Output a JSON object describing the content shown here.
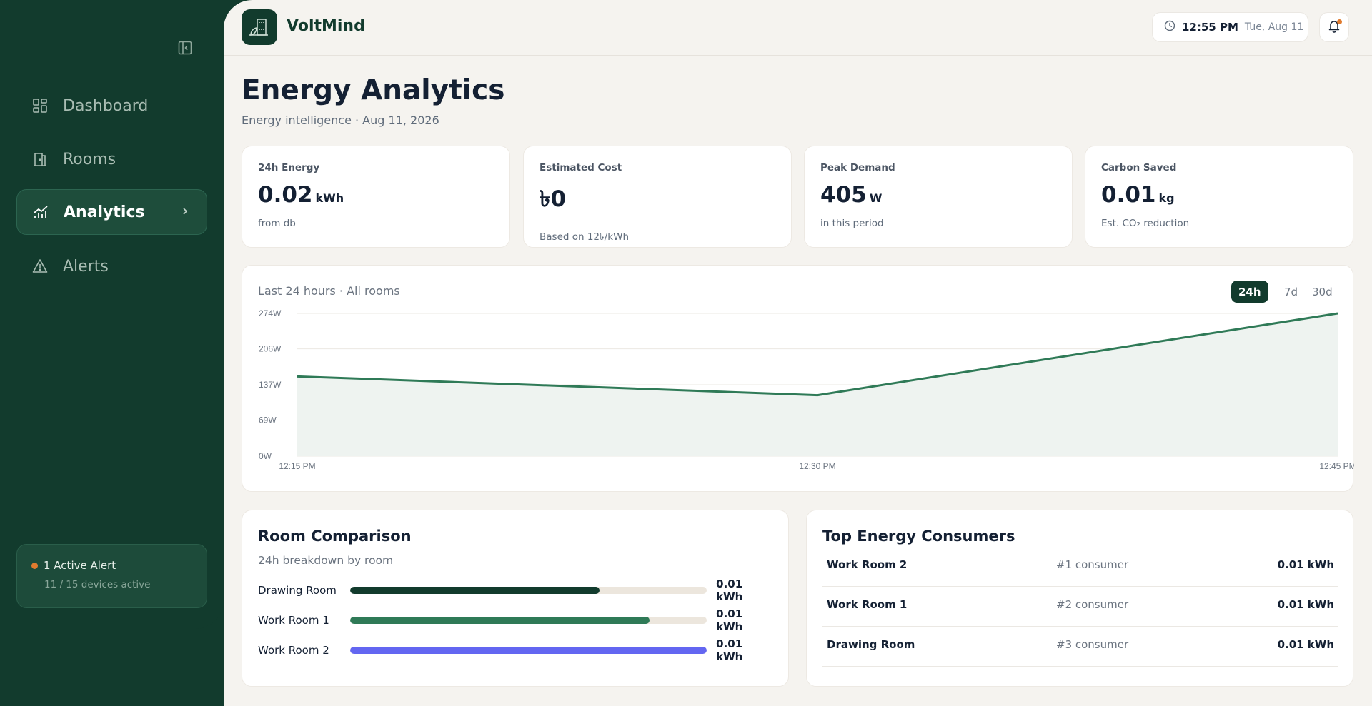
{
  "brand": {
    "name": "VoltMind"
  },
  "header": {
    "time": "12:55 PM",
    "date": "Tue, Aug 11"
  },
  "sidebar": {
    "items": [
      {
        "label": "Dashboard",
        "icon": "grid-icon"
      },
      {
        "label": "Rooms",
        "icon": "door-icon"
      },
      {
        "label": "Analytics",
        "icon": "chart-icon",
        "active": true
      },
      {
        "label": "Alerts",
        "icon": "warning-icon"
      }
    ],
    "alert": {
      "title": "1 Active Alert",
      "sub": "11 / 15 devices active"
    }
  },
  "page": {
    "title": "Energy Analytics",
    "subtitle": "Energy intelligence · Aug 11, 2026"
  },
  "stats": [
    {
      "label": "24h Energy",
      "value": "0.02",
      "unit": "kWh",
      "note": "from db"
    },
    {
      "label": "Estimated Cost",
      "value": "৳0",
      "unit": "",
      "note": "Based on 12৳/kWh"
    },
    {
      "label": "Peak Demand",
      "value": "405",
      "unit": "W",
      "note": "in this period"
    },
    {
      "label": "Carbon Saved",
      "value": "0.01",
      "unit": "kg",
      "note": "Est. CO₂ reduction"
    }
  ],
  "chart": {
    "header": "Last 24 hours · All rooms",
    "ranges": [
      "24h",
      "7d",
      "30d"
    ],
    "active_range": "24h"
  },
  "chart_data": {
    "type": "area",
    "x": [
      "12:15 PM",
      "12:30 PM",
      "12:45 PM"
    ],
    "series": [
      {
        "values": [
          153,
          117,
          274
        ]
      }
    ],
    "ylim": [
      0,
      274
    ],
    "yticks": [
      "274W",
      "206W",
      "137W",
      "69W",
      "0W"
    ],
    "ytick_values": [
      274,
      206,
      137,
      69,
      0
    ],
    "grid": true,
    "line_color": "#2f7a57",
    "fill_color": "#eef3f0"
  },
  "room_comparison": {
    "title": "Room Comparison",
    "subtitle": "24h breakdown by room",
    "rows": [
      {
        "name": "Drawing Room",
        "value": "0.01 kWh",
        "fraction": 0.7,
        "color": "#123b2d"
      },
      {
        "name": "Work Room 1",
        "value": "0.01 kWh",
        "fraction": 0.84,
        "color": "#2f7a57"
      },
      {
        "name": "Work Room 2",
        "value": "0.01 kWh",
        "fraction": 1.0,
        "color": "#6366f1"
      }
    ]
  },
  "top_consumers": {
    "title": "Top Energy Consumers",
    "rows": [
      {
        "name": "Work Room 2",
        "rank": "#1 consumer",
        "value": "0.01 kWh"
      },
      {
        "name": "Work Room 1",
        "rank": "#2 consumer",
        "value": "0.01 kWh"
      },
      {
        "name": "Drawing Room",
        "rank": "#3 consumer",
        "value": "0.01 kWh"
      }
    ]
  }
}
